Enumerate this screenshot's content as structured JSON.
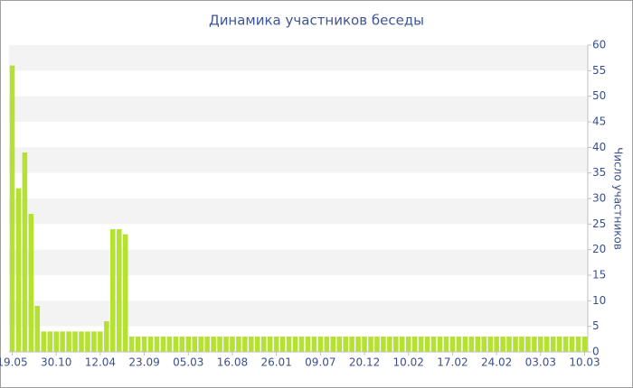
{
  "chart_data": {
    "type": "bar",
    "title": "Динамика участников беседы",
    "y_axis_label": "Число участников",
    "categories": [
      "19.05",
      null,
      null,
      null,
      null,
      null,
      null,
      "30.10",
      null,
      null,
      null,
      null,
      null,
      null,
      "12.04",
      null,
      null,
      null,
      null,
      null,
      null,
      "23.09",
      null,
      null,
      null,
      null,
      null,
      null,
      "05.03",
      null,
      null,
      null,
      null,
      null,
      null,
      "16.08",
      null,
      null,
      null,
      null,
      null,
      null,
      "26.01",
      null,
      null,
      null,
      null,
      null,
      null,
      "09.07",
      null,
      null,
      null,
      null,
      null,
      null,
      "20.12",
      null,
      null,
      null,
      null,
      null,
      null,
      "10.02",
      null,
      null,
      null,
      null,
      null,
      null,
      "17.02",
      null,
      null,
      null,
      null,
      null,
      null,
      "24.02",
      null,
      null,
      null,
      null,
      null,
      null,
      "03.03",
      null,
      null,
      null,
      null,
      null,
      null,
      "10.03"
    ],
    "values": [
      56,
      32,
      39,
      27,
      9,
      4,
      4,
      4,
      4,
      4,
      4,
      4,
      4,
      4,
      4,
      6,
      24,
      24,
      23,
      3,
      3,
      3,
      3,
      3,
      3,
      3,
      3,
      3,
      3,
      3,
      3,
      3,
      3,
      3,
      3,
      3,
      3,
      3,
      3,
      3,
      3,
      3,
      3,
      3,
      3,
      3,
      3,
      3,
      3,
      3,
      3,
      3,
      3,
      3,
      3,
      3,
      3,
      3,
      3,
      3,
      3,
      3,
      3,
      3,
      3,
      3,
      3,
      3,
      3,
      3,
      3,
      3,
      3,
      3,
      3,
      3,
      3,
      3,
      3,
      3,
      3,
      3,
      3,
      3,
      3,
      3,
      3,
      3,
      3,
      3,
      3,
      3
    ],
    "color": "#b5e133",
    "ylim": [
      0,
      60
    ],
    "yticks": [
      0,
      5,
      10,
      15,
      20,
      25,
      30,
      35,
      40,
      45,
      50,
      55,
      60
    ],
    "grid": true
  }
}
